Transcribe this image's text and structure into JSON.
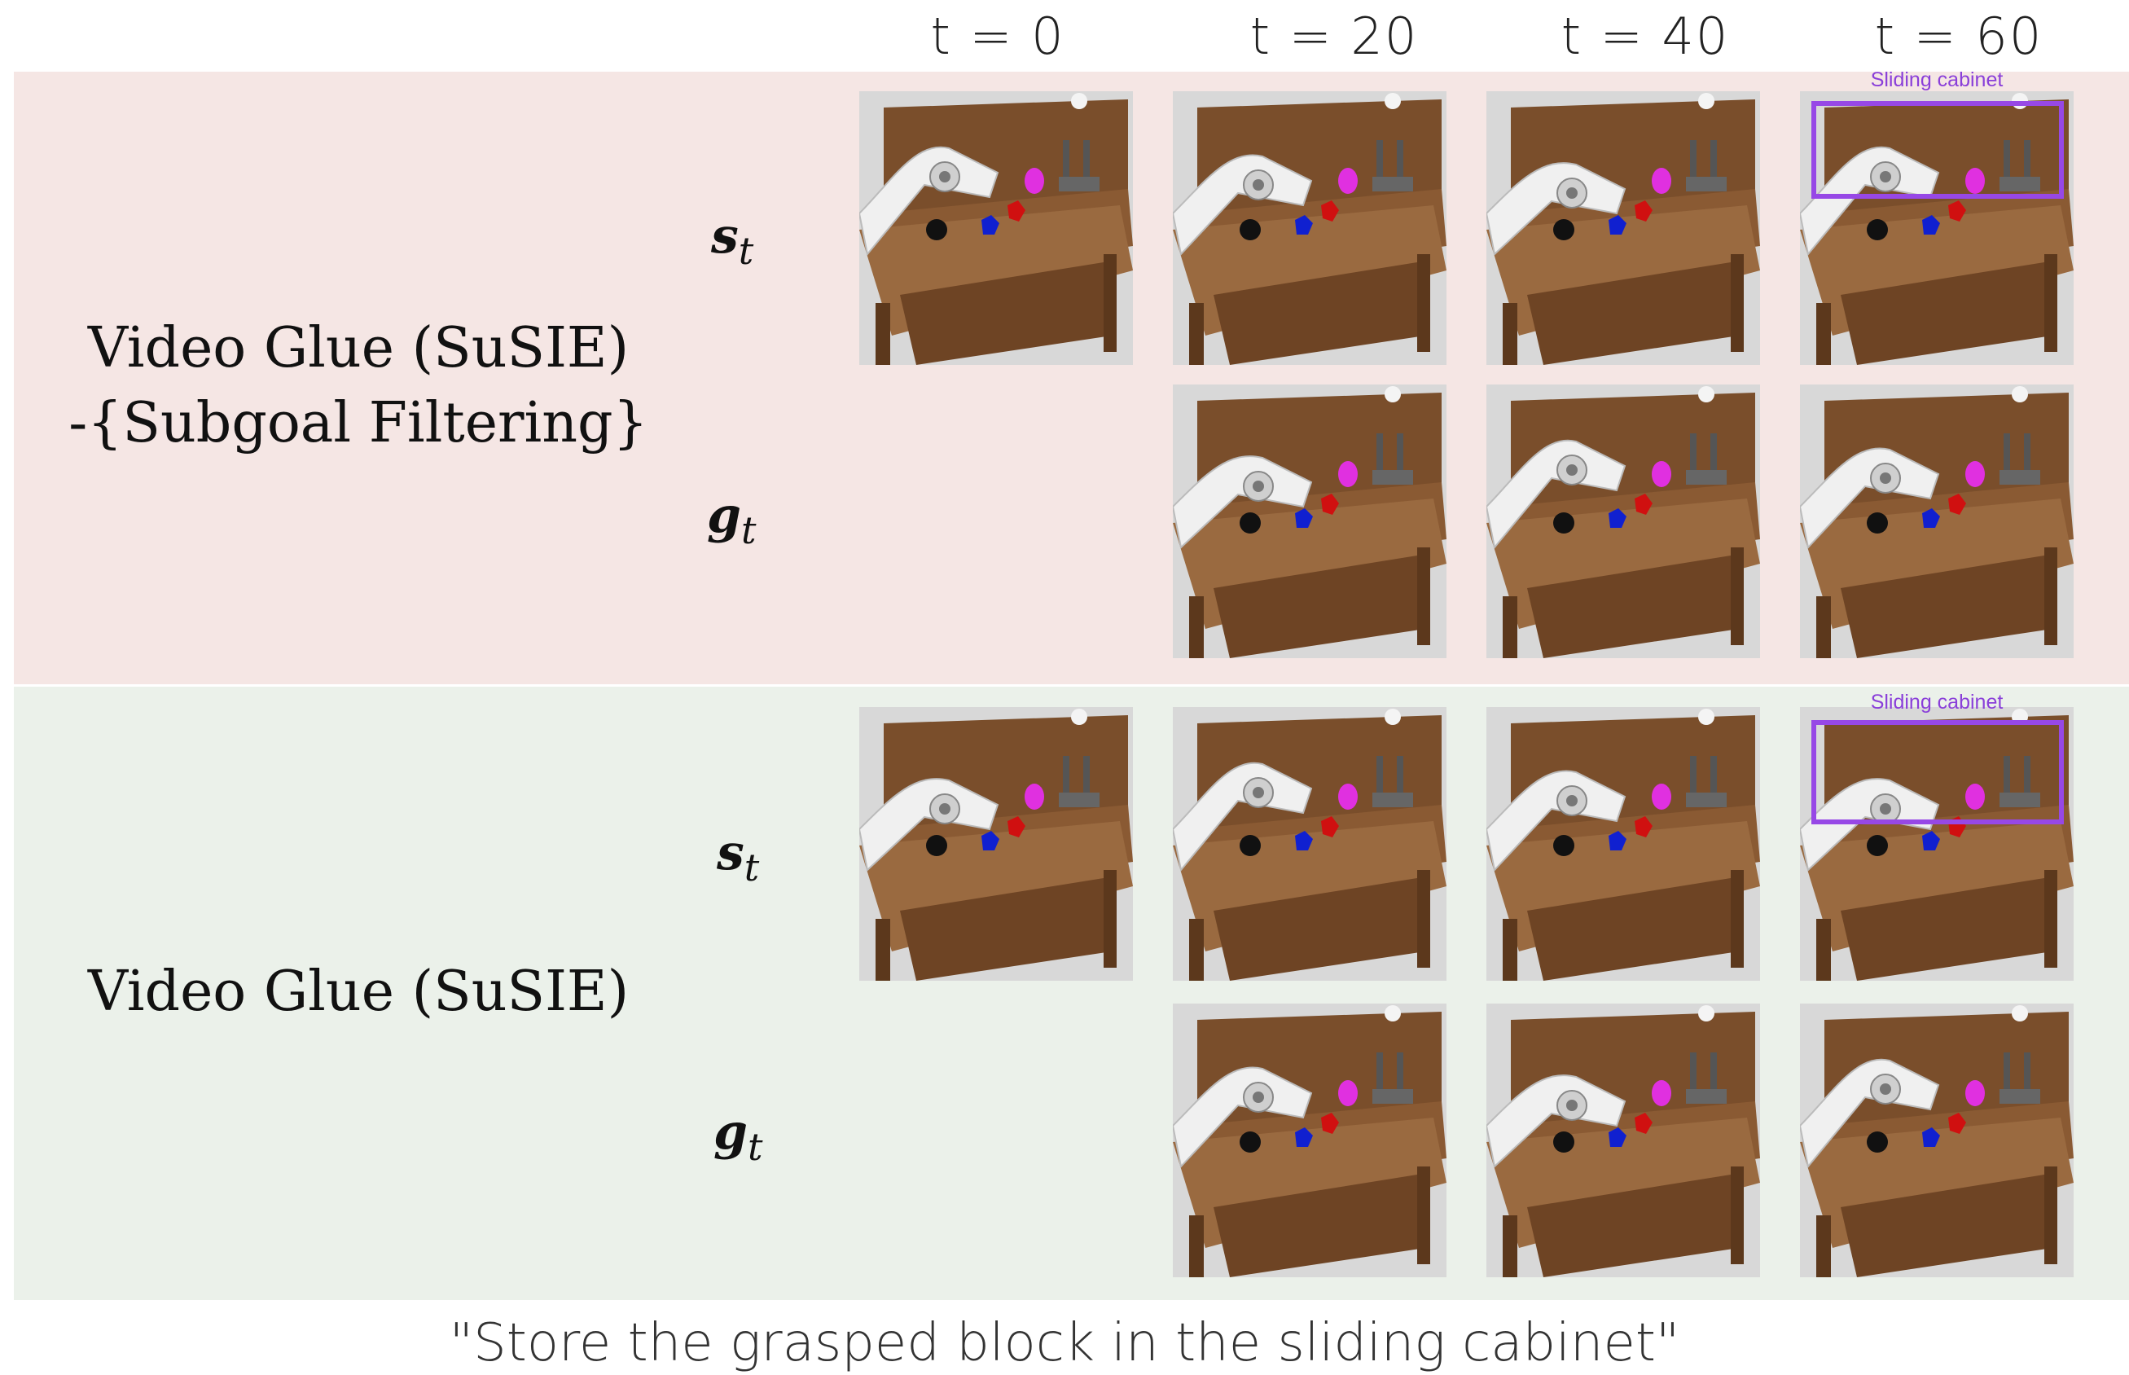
{
  "headers": [
    "t = 0",
    "t = 20",
    "t = 40",
    "t = 60"
  ],
  "rows": [
    {
      "title_line1": "Video Glue (SuSIE)",
      "title_line2": "-{Subgoal Filtering}"
    },
    {
      "title_line1": "Video Glue (SuSIE)"
    }
  ],
  "math": {
    "s": "s",
    "g": "g",
    "sub": "t"
  },
  "highlight_label": "Sliding cabinet",
  "caption": "\"Store the grasped block in the sliding cabinet\"",
  "colors": {
    "top_band": "#f5e6e4",
    "bottom_band": "#ebf1ea",
    "highlight": "#9748e6",
    "wood": "#8a5a33",
    "block_red": "#d01010",
    "block_blue": "#1020d0",
    "block_magenta": "#e030e0"
  }
}
